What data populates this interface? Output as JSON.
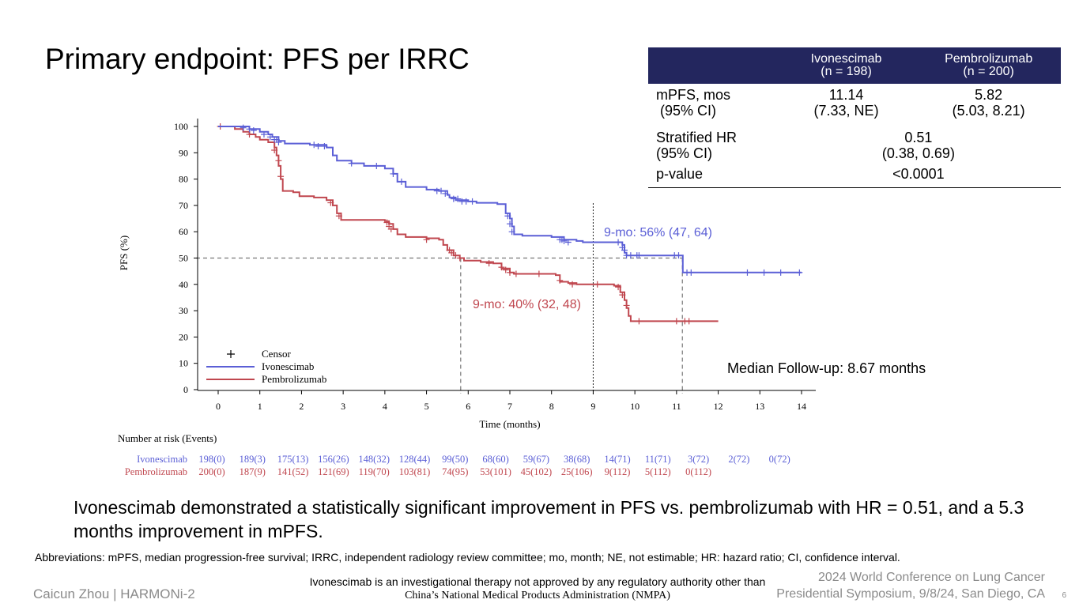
{
  "title": "Primary endpoint: PFS per IRRC",
  "stats_table": {
    "headers": [
      {
        "name": "Ivonescimab",
        "n": "(n = 198)"
      },
      {
        "name": "Pembrolizumab",
        "n": "(n = 200)"
      }
    ],
    "rows": [
      {
        "label": "mPFS, mos",
        "label2": " (95% CI)",
        "ivo": "11.14",
        "ivo2": "(7.33, NE)",
        "pem": "5.82",
        "pem2": "(5.03, 8.21)"
      },
      {
        "label": "Stratified HR",
        "label2": "(95% CI)",
        "value": "0.51",
        "value2": "(0.38, 0.69)"
      },
      {
        "label": "p-value",
        "value": "<0.0001"
      }
    ]
  },
  "chart_data": {
    "type": "line",
    "subtype": "kaplan-meier",
    "xlabel": "Time (months)",
    "ylabel": "PFS (%)",
    "xlim": [
      0,
      14
    ],
    "ylim": [
      0,
      100
    ],
    "xticks": [
      0,
      1,
      2,
      3,
      4,
      5,
      6,
      7,
      8,
      9,
      10,
      11,
      12,
      13,
      14
    ],
    "yticks": [
      0,
      10,
      20,
      30,
      40,
      50,
      60,
      70,
      80,
      90,
      100
    ],
    "series": [
      {
        "name": "Ivonescimab",
        "color": "#5b5fd6",
        "steps": [
          [
            0,
            100
          ],
          [
            0.75,
            99
          ],
          [
            1.0,
            98
          ],
          [
            1.2,
            97
          ],
          [
            1.3,
            96
          ],
          [
            1.45,
            94.5
          ],
          [
            1.6,
            93.5
          ],
          [
            2.2,
            93
          ],
          [
            2.6,
            92
          ],
          [
            2.75,
            89
          ],
          [
            2.85,
            87
          ],
          [
            3.2,
            86
          ],
          [
            3.5,
            85
          ],
          [
            4.0,
            84
          ],
          [
            4.2,
            82
          ],
          [
            4.3,
            79
          ],
          [
            4.5,
            77
          ],
          [
            5.0,
            76
          ],
          [
            5.3,
            75.5
          ],
          [
            5.5,
            74
          ],
          [
            5.55,
            73
          ],
          [
            5.7,
            72
          ],
          [
            6.0,
            71.5
          ],
          [
            6.2,
            71
          ],
          [
            6.7,
            70.5
          ],
          [
            6.9,
            67
          ],
          [
            7.0,
            65
          ],
          [
            7.05,
            62
          ],
          [
            7.1,
            59
          ],
          [
            7.3,
            58.5
          ],
          [
            8.0,
            58
          ],
          [
            8.3,
            57
          ],
          [
            8.6,
            56.5
          ],
          [
            8.75,
            56
          ],
          [
            9.7,
            55
          ],
          [
            9.75,
            52
          ],
          [
            9.8,
            51
          ],
          [
            11.15,
            51
          ],
          [
            11.15,
            44.5
          ],
          [
            14.0,
            44.5
          ]
        ],
        "censors": [
          [
            0.6,
            99.5
          ],
          [
            0.75,
            99
          ],
          [
            0.85,
            98.5
          ],
          [
            1.1,
            97
          ],
          [
            1.25,
            96
          ],
          [
            1.35,
            95
          ],
          [
            1.4,
            95
          ],
          [
            1.45,
            94
          ],
          [
            2.3,
            93
          ],
          [
            2.4,
            92.5
          ],
          [
            2.55,
            92.5
          ],
          [
            3.2,
            86
          ],
          [
            3.8,
            85
          ],
          [
            4.2,
            82
          ],
          [
            4.4,
            79
          ],
          [
            5.25,
            75.5
          ],
          [
            5.35,
            75.5
          ],
          [
            5.45,
            74.5
          ],
          [
            5.65,
            72.5
          ],
          [
            5.75,
            72.5
          ],
          [
            5.85,
            71.5
          ],
          [
            5.95,
            71.5
          ],
          [
            6.1,
            71.5
          ],
          [
            6.95,
            66
          ],
          [
            7.0,
            63
          ],
          [
            7.05,
            60
          ],
          [
            8.2,
            57
          ],
          [
            8.25,
            57
          ],
          [
            8.3,
            56.5
          ],
          [
            8.4,
            56
          ],
          [
            9.6,
            56
          ],
          [
            9.7,
            54
          ],
          [
            9.75,
            53
          ],
          [
            9.8,
            51
          ],
          [
            9.9,
            51
          ],
          [
            10.05,
            51
          ],
          [
            10.1,
            51
          ],
          [
            10.95,
            51
          ],
          [
            11.05,
            51
          ],
          [
            11.25,
            44.5
          ],
          [
            11.35,
            44.5
          ],
          [
            12.7,
            44.5
          ],
          [
            13.1,
            44.5
          ],
          [
            13.5,
            44.5
          ],
          [
            13.95,
            44.5
          ]
        ],
        "annotation": "9-mo: 56% (47, 64)"
      },
      {
        "name": "Pembrolizumab",
        "color": "#c0474f",
        "steps": [
          [
            0,
            100
          ],
          [
            0.4,
            99
          ],
          [
            0.6,
            98
          ],
          [
            0.75,
            97
          ],
          [
            0.9,
            96
          ],
          [
            1.0,
            95
          ],
          [
            1.2,
            94
          ],
          [
            1.35,
            92
          ],
          [
            1.4,
            89
          ],
          [
            1.45,
            85
          ],
          [
            1.5,
            80
          ],
          [
            1.55,
            75.5
          ],
          [
            1.8,
            75
          ],
          [
            1.95,
            73.5
          ],
          [
            2.3,
            73
          ],
          [
            2.6,
            72
          ],
          [
            2.75,
            70
          ],
          [
            2.85,
            67
          ],
          [
            2.95,
            64.5
          ],
          [
            4.0,
            64
          ],
          [
            4.1,
            63
          ],
          [
            4.2,
            61
          ],
          [
            4.3,
            59
          ],
          [
            4.5,
            58
          ],
          [
            5.0,
            57.5
          ],
          [
            5.3,
            57
          ],
          [
            5.4,
            55
          ],
          [
            5.5,
            53
          ],
          [
            5.65,
            51
          ],
          [
            5.8,
            50
          ],
          [
            5.9,
            49
          ],
          [
            6.3,
            48.5
          ],
          [
            6.6,
            48
          ],
          [
            6.8,
            46
          ],
          [
            7.0,
            44.5
          ],
          [
            7.1,
            44
          ],
          [
            8.1,
            43.5
          ],
          [
            8.2,
            41
          ],
          [
            8.4,
            40.5
          ],
          [
            8.6,
            40
          ],
          [
            9.5,
            39.5
          ],
          [
            9.65,
            37
          ],
          [
            9.75,
            34
          ],
          [
            9.8,
            31
          ],
          [
            9.85,
            28
          ],
          [
            9.9,
            26
          ],
          [
            12.0,
            26
          ]
        ],
        "censors": [
          [
            0.05,
            100
          ],
          [
            0.75,
            97
          ],
          [
            1.35,
            91
          ],
          [
            1.45,
            87
          ],
          [
            1.5,
            81
          ],
          [
            2.7,
            71
          ],
          [
            2.9,
            66
          ],
          [
            4.05,
            63.5
          ],
          [
            4.1,
            62
          ],
          [
            4.15,
            61
          ],
          [
            5.0,
            57
          ],
          [
            5.55,
            53
          ],
          [
            5.6,
            52
          ],
          [
            5.7,
            51
          ],
          [
            5.8,
            50
          ],
          [
            6.5,
            48
          ],
          [
            6.8,
            46.5
          ],
          [
            6.9,
            45.5
          ],
          [
            7.0,
            44.5
          ],
          [
            7.15,
            44
          ],
          [
            7.7,
            44
          ],
          [
            8.2,
            41.5
          ],
          [
            8.5,
            40
          ],
          [
            9.1,
            40
          ],
          [
            9.6,
            39
          ],
          [
            9.7,
            36
          ],
          [
            9.8,
            32
          ],
          [
            10.1,
            26
          ],
          [
            11.0,
            26
          ],
          [
            11.2,
            26
          ],
          [
            11.3,
            26
          ]
        ],
        "annotation": "9-mo: 40% (32, 48)"
      }
    ],
    "reference_lines": {
      "median_y": 50,
      "pem_median_x": 5.82,
      "ivo_median_x": 11.14,
      "landmark_x": 9
    },
    "legend": {
      "position": "bottom-left",
      "censor_label": "Censor",
      "items": [
        "Ivonescimab",
        "Pembrolizumab"
      ]
    },
    "followup_note": "Median Follow-up: 8.67 months",
    "risk_table": {
      "title": "Number at risk (Events)",
      "rows": [
        {
          "name": "Ivonescimab",
          "values": [
            "198(0)",
            "189(3)",
            "175(13)",
            "156(26)",
            "148(32)",
            "128(44)",
            "99(50)",
            "68(60)",
            "59(67)",
            "38(68)",
            "14(71)",
            "11(71)",
            "3(72)",
            "2(72)",
            "0(72)"
          ]
        },
        {
          "name": "Pembrolizumab",
          "values": [
            "200(0)",
            "187(9)",
            "141(52)",
            "121(69)",
            "119(70)",
            "103(81)",
            "74(95)",
            "53(101)",
            "45(102)",
            "25(106)",
            "9(112)",
            "5(112)",
            "0(112)"
          ]
        }
      ]
    }
  },
  "conclusion": "Ivonescimab demonstrated a statistically significant improvement in PFS vs. pembrolizumab with HR = 0.51, and a 5.3 months improvement in mPFS.",
  "abbreviations": "Abbreviations: mPFS, median progression-free survival; IRRC, independent radiology review committee; mo, month; NE, not estimable; HR: hazard ratio; CI, confidence interval.",
  "disclaimer": {
    "line1": "Ivonescimab is an investigational therapy not approved by any regulatory authority other than",
    "line2": "China’s National Medical Products Administration (NMPA)"
  },
  "footer": {
    "presenter": "Caicun Zhou | HARMONi-2",
    "conference_line1": "2024 World Conference on Lung Cancer",
    "conference_line2": "Presidential Symposium, 9/8/24, San Diego, CA",
    "page": "6"
  }
}
